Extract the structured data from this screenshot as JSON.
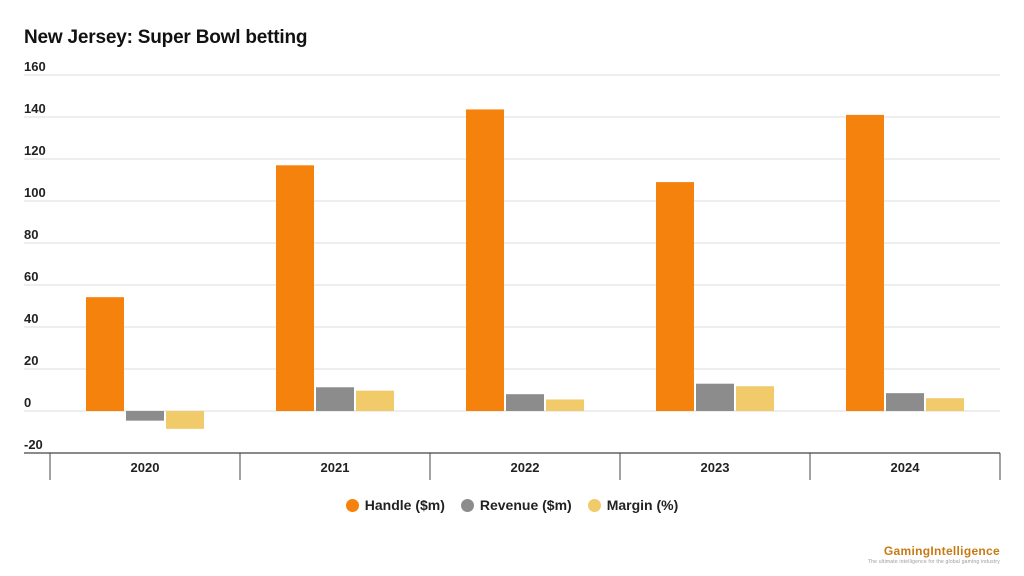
{
  "chart_data": {
    "type": "bar",
    "title": "New Jersey: Super Bowl betting",
    "categories": [
      "2020",
      "2021",
      "2022",
      "2023",
      "2024"
    ],
    "series": [
      {
        "name": "Handle ($m)",
        "color": "#f5820c",
        "values": [
          54.2,
          117.0,
          143.6,
          109.0,
          141.0
        ]
      },
      {
        "name": "Revenue ($m)",
        "color": "#8c8c8c",
        "values": [
          -4.6,
          11.3,
          8.0,
          13.0,
          8.5
        ]
      },
      {
        "name": "Margin (%)",
        "color": "#f1cb6a",
        "values": [
          -8.5,
          9.7,
          5.5,
          11.8,
          6.1
        ]
      }
    ],
    "yticks": [
      "160",
      "140",
      "120",
      "100",
      "80",
      "60",
      "40",
      "20",
      "0",
      "-20"
    ],
    "ylim": [
      -20,
      160
    ],
    "grid": true,
    "legend_position": "bottom-center"
  },
  "brand": {
    "name": "GamingIntelligence",
    "tagline": "The ultimate intelligence for the global gaming industry"
  }
}
